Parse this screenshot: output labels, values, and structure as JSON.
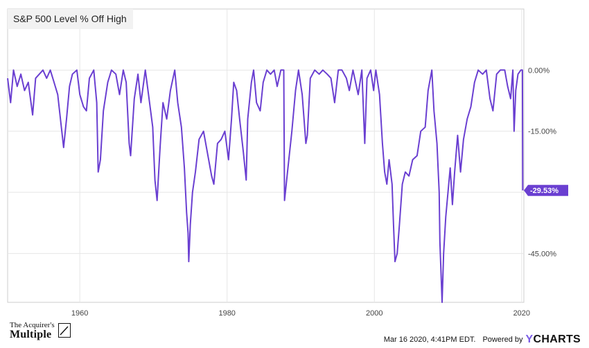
{
  "legend": {
    "title": "S&P 500 Level % Off High"
  },
  "footer": {
    "timestamp": "Mar 16 2020, 4:41PM EDT.",
    "powered_by": "Powered by",
    "brand": "YCHARTS",
    "brand_y": "Y",
    "brand_rest": "CHARTS",
    "logo_line1": "The Acquirer's",
    "logo_line2": "Multiple"
  },
  "colors": {
    "series": "#6a3fd1",
    "grid": "#e6e6e6",
    "axis_text": "#444444",
    "label_text": "#ffffff"
  },
  "chart_data": {
    "type": "line",
    "title": "S&P 500 Level % Off High",
    "xlabel": "",
    "ylabel": "",
    "x_ticks": [
      "1960",
      "1980",
      "2000",
      "2020"
    ],
    "y_ticks": [
      "0.00%",
      "-15.00%",
      "-30.00%",
      "-45.00%"
    ],
    "y_tick_values": [
      0,
      -15,
      -30,
      -45
    ],
    "ylim": [
      -57,
      15
    ],
    "xlim": [
      1950.2,
      2020.3
    ],
    "grid": true,
    "last_value_label": "-29.53%",
    "series": [
      {
        "values": [
          [
            1950.2,
            -2
          ],
          [
            1950.6,
            -8
          ],
          [
            1951.0,
            0
          ],
          [
            1951.5,
            -4
          ],
          [
            1952.0,
            -1
          ],
          [
            1952.5,
            -5
          ],
          [
            1953.0,
            -3
          ],
          [
            1953.6,
            -11
          ],
          [
            1954.0,
            -2
          ],
          [
            1954.5,
            -1
          ],
          [
            1955.0,
            0
          ],
          [
            1955.5,
            -2
          ],
          [
            1956.0,
            0
          ],
          [
            1956.5,
            -3
          ],
          [
            1957.0,
            -6
          ],
          [
            1957.8,
            -19
          ],
          [
            1958.2,
            -12
          ],
          [
            1958.6,
            -4
          ],
          [
            1959.0,
            -1
          ],
          [
            1959.6,
            0
          ],
          [
            1960.0,
            -6
          ],
          [
            1960.5,
            -9
          ],
          [
            1960.9,
            -10
          ],
          [
            1961.3,
            -2
          ],
          [
            1961.9,
            0
          ],
          [
            1962.3,
            -8
          ],
          [
            1962.5,
            -25
          ],
          [
            1962.8,
            -22
          ],
          [
            1963.2,
            -10
          ],
          [
            1963.8,
            -3
          ],
          [
            1964.3,
            0
          ],
          [
            1964.9,
            -1
          ],
          [
            1965.4,
            -6
          ],
          [
            1965.9,
            0
          ],
          [
            1966.3,
            -3
          ],
          [
            1966.7,
            -18
          ],
          [
            1966.9,
            -21
          ],
          [
            1967.4,
            -7
          ],
          [
            1967.9,
            -1
          ],
          [
            1968.3,
            -8
          ],
          [
            1968.9,
            0
          ],
          [
            1969.4,
            -7
          ],
          [
            1969.9,
            -14
          ],
          [
            1970.2,
            -27
          ],
          [
            1970.5,
            -32
          ],
          [
            1970.9,
            -19
          ],
          [
            1971.3,
            -8
          ],
          [
            1971.8,
            -12
          ],
          [
            1972.3,
            -5
          ],
          [
            1972.9,
            0
          ],
          [
            1973.3,
            -8
          ],
          [
            1973.8,
            -14
          ],
          [
            1974.2,
            -24
          ],
          [
            1974.5,
            -35
          ],
          [
            1974.7,
            -40
          ],
          [
            1974.8,
            -47
          ],
          [
            1975.0,
            -38
          ],
          [
            1975.3,
            -30
          ],
          [
            1975.7,
            -25
          ],
          [
            1976.2,
            -17
          ],
          [
            1976.8,
            -15
          ],
          [
            1977.3,
            -20
          ],
          [
            1977.9,
            -26
          ],
          [
            1978.2,
            -28
          ],
          [
            1978.7,
            -18
          ],
          [
            1979.2,
            -17
          ],
          [
            1979.7,
            -15
          ],
          [
            1980.2,
            -22
          ],
          [
            1980.6,
            -12
          ],
          [
            1980.9,
            -3
          ],
          [
            1981.3,
            -5
          ],
          [
            1981.7,
            -12
          ],
          [
            1982.2,
            -20
          ],
          [
            1982.6,
            -27
          ],
          [
            1982.8,
            -12
          ],
          [
            1983.3,
            -3
          ],
          [
            1983.6,
            0
          ],
          [
            1984.0,
            -8
          ],
          [
            1984.5,
            -10
          ],
          [
            1984.9,
            -3
          ],
          [
            1985.4,
            0
          ],
          [
            1985.9,
            -1
          ],
          [
            1986.4,
            0
          ],
          [
            1986.8,
            -4
          ],
          [
            1987.3,
            0
          ],
          [
            1987.7,
            0
          ],
          [
            1987.8,
            -32
          ],
          [
            1988.2,
            -25
          ],
          [
            1988.8,
            -15
          ],
          [
            1989.3,
            -5
          ],
          [
            1989.7,
            0
          ],
          [
            1990.2,
            -6
          ],
          [
            1990.7,
            -18
          ],
          [
            1990.9,
            -16
          ],
          [
            1991.3,
            -2
          ],
          [
            1991.9,
            0
          ],
          [
            1992.5,
            -1
          ],
          [
            1993.0,
            0
          ],
          [
            1993.6,
            -1
          ],
          [
            1994.1,
            -2
          ],
          [
            1994.6,
            -8
          ],
          [
            1995.1,
            0
          ],
          [
            1995.6,
            0
          ],
          [
            1996.2,
            -2
          ],
          [
            1996.6,
            -5
          ],
          [
            1997.1,
            0
          ],
          [
            1997.8,
            -6
          ],
          [
            1998.3,
            0
          ],
          [
            1998.7,
            -18
          ],
          [
            1999.0,
            -2
          ],
          [
            1999.5,
            0
          ],
          [
            1999.9,
            -5
          ],
          [
            2000.2,
            0
          ],
          [
            2000.7,
            -6
          ],
          [
            2001.1,
            -18
          ],
          [
            2001.4,
            -25
          ],
          [
            2001.7,
            -28
          ],
          [
            2002.0,
            -22
          ],
          [
            2002.4,
            -28
          ],
          [
            2002.6,
            -38
          ],
          [
            2002.8,
            -47
          ],
          [
            2003.1,
            -45
          ],
          [
            2003.4,
            -38
          ],
          [
            2003.8,
            -28
          ],
          [
            2004.2,
            -25
          ],
          [
            2004.7,
            -26
          ],
          [
            2005.2,
            -22
          ],
          [
            2005.8,
            -21
          ],
          [
            2006.3,
            -15
          ],
          [
            2006.9,
            -14
          ],
          [
            2007.3,
            -5
          ],
          [
            2007.8,
            0
          ],
          [
            2008.1,
            -10
          ],
          [
            2008.5,
            -18
          ],
          [
            2008.8,
            -30
          ],
          [
            2008.9,
            -42
          ],
          [
            2009.2,
            -57
          ],
          [
            2009.4,
            -45
          ],
          [
            2009.7,
            -36
          ],
          [
            2010.0,
            -30
          ],
          [
            2010.3,
            -24
          ],
          [
            2010.6,
            -33
          ],
          [
            2010.9,
            -25
          ],
          [
            2011.3,
            -16
          ],
          [
            2011.7,
            -25
          ],
          [
            2012.1,
            -17
          ],
          [
            2012.6,
            -12
          ],
          [
            2013.1,
            -9
          ],
          [
            2013.6,
            -3
          ],
          [
            2014.1,
            0
          ],
          [
            2014.7,
            -1
          ],
          [
            2015.2,
            0
          ],
          [
            2015.7,
            -7
          ],
          [
            2016.1,
            -10
          ],
          [
            2016.6,
            -1
          ],
          [
            2017.1,
            0
          ],
          [
            2017.7,
            0
          ],
          [
            2018.1,
            -4
          ],
          [
            2018.5,
            -7
          ],
          [
            2018.8,
            0
          ],
          [
            2018.97,
            -15
          ],
          [
            2019.2,
            -5
          ],
          [
            2019.5,
            -1
          ],
          [
            2019.9,
            0
          ],
          [
            2020.1,
            0
          ],
          [
            2020.15,
            -29.53
          ]
        ]
      }
    ]
  }
}
